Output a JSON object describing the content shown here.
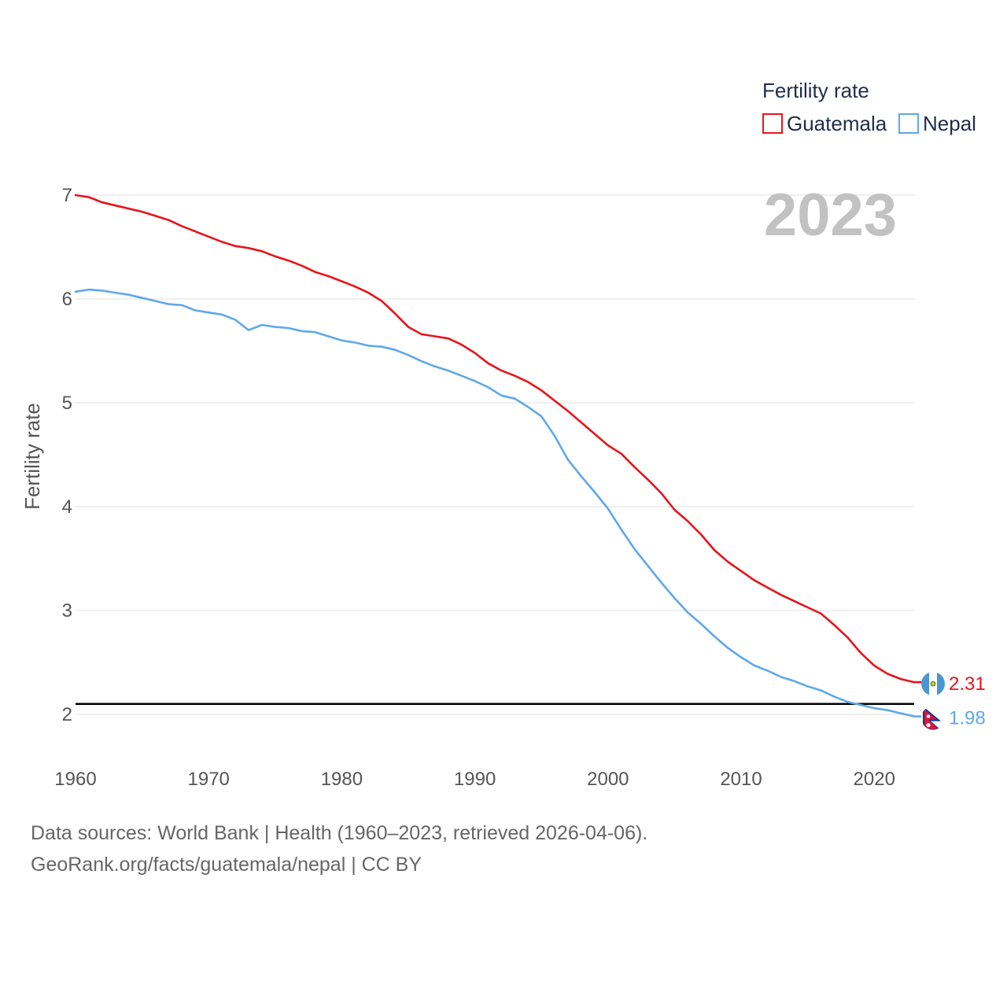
{
  "chart_data": {
    "type": "line",
    "ylabel": "Fertility rate",
    "ylim": [
      1.8,
      7.2
    ],
    "xlim": [
      1960,
      2023
    ],
    "yticks": [
      "2",
      "3",
      "4",
      "5",
      "6",
      "7"
    ],
    "xticks": [
      "1960",
      "1970",
      "1980",
      "1990",
      "2000",
      "2010",
      "2020"
    ],
    "reference_line": 2.1,
    "legend": {
      "title": "Fertility rate",
      "position": "top-right"
    },
    "current_year": "2023",
    "x": [
      1960,
      1961,
      1962,
      1963,
      1964,
      1965,
      1966,
      1967,
      1968,
      1969,
      1970,
      1971,
      1972,
      1973,
      1974,
      1975,
      1976,
      1977,
      1978,
      1979,
      1980,
      1981,
      1982,
      1983,
      1984,
      1985,
      1986,
      1987,
      1988,
      1989,
      1990,
      1991,
      1992,
      1993,
      1994,
      1995,
      1996,
      1997,
      1998,
      1999,
      2000,
      2001,
      2002,
      2003,
      2004,
      2005,
      2006,
      2007,
      2008,
      2009,
      2010,
      2011,
      2012,
      2013,
      2014,
      2015,
      2016,
      2017,
      2018,
      2019,
      2020,
      2021,
      2022,
      2023
    ],
    "series": [
      {
        "name": "Guatemala",
        "color": "#e8141a",
        "end_label": "2.31",
        "flag": "guatemala-flag",
        "values": [
          7.0,
          6.98,
          6.93,
          6.9,
          6.87,
          6.84,
          6.8,
          6.76,
          6.7,
          6.65,
          6.6,
          6.55,
          6.51,
          6.49,
          6.46,
          6.41,
          6.37,
          6.32,
          6.26,
          6.22,
          6.17,
          6.12,
          6.06,
          5.98,
          5.86,
          5.73,
          5.66,
          5.64,
          5.62,
          5.56,
          5.48,
          5.38,
          5.31,
          5.26,
          5.2,
          5.12,
          5.02,
          4.92,
          4.81,
          4.7,
          4.59,
          4.51,
          4.38,
          4.26,
          4.13,
          3.97,
          3.86,
          3.73,
          3.58,
          3.47,
          3.38,
          3.29,
          3.22,
          3.15,
          3.09,
          3.03,
          2.97,
          2.86,
          2.74,
          2.59,
          2.47,
          2.39,
          2.34,
          2.31
        ]
      },
      {
        "name": "Nepal",
        "color": "#5ea8ec",
        "end_label": "1.98",
        "flag": "nepal-flag",
        "values": [
          6.07,
          6.09,
          6.08,
          6.06,
          6.04,
          6.01,
          5.98,
          5.95,
          5.94,
          5.89,
          5.87,
          5.85,
          5.8,
          5.7,
          5.75,
          5.73,
          5.72,
          5.69,
          5.68,
          5.64,
          5.6,
          5.58,
          5.55,
          5.54,
          5.51,
          5.46,
          5.4,
          5.35,
          5.31,
          5.26,
          5.21,
          5.15,
          5.07,
          5.04,
          4.96,
          4.87,
          4.68,
          4.45,
          4.29,
          4.14,
          3.98,
          3.78,
          3.59,
          3.43,
          3.27,
          3.12,
          2.98,
          2.87,
          2.75,
          2.64,
          2.55,
          2.47,
          2.42,
          2.36,
          2.32,
          2.27,
          2.23,
          2.17,
          2.12,
          2.09,
          2.06,
          2.04,
          2.01,
          1.98
        ]
      }
    ]
  },
  "footer": {
    "sources": "Data sources: World Bank | Health (1960–2023, retrieved 2026-04-06).",
    "credit": "GeoRank.org/facts/guatemala/nepal | CC BY"
  }
}
